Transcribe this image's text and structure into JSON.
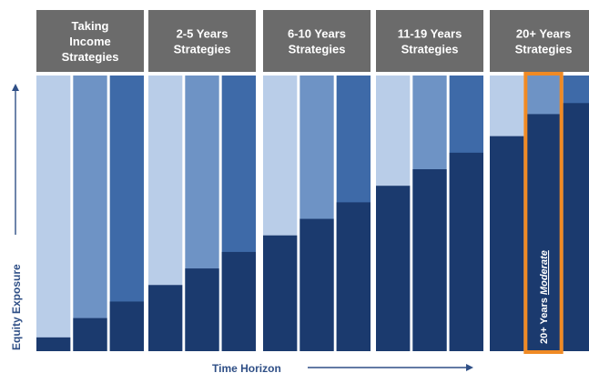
{
  "chart_data": {
    "type": "bar",
    "stacked": true,
    "ylabel": "Equity Exposure",
    "xlabel": "Time Horizon",
    "ylim": [
      0,
      100
    ],
    "groups": [
      {
        "title": [
          "Taking",
          "Income",
          "Strategies"
        ],
        "equity": [
          5,
          12,
          18
        ]
      },
      {
        "title": [
          "2-5 Years",
          "Strategies"
        ],
        "equity": [
          24,
          30,
          36
        ]
      },
      {
        "title": [
          "6-10 Years",
          "Strategies"
        ],
        "equity": [
          42,
          48,
          54
        ]
      },
      {
        "title": [
          "11-19 Years",
          "Strategies"
        ],
        "equity": [
          60,
          66,
          72
        ]
      },
      {
        "title": [
          "20+ Years",
          "Strategies"
        ],
        "equity": [
          78,
          86,
          90
        ]
      }
    ],
    "highlight": {
      "group": 4,
      "bar": 1,
      "label_prefix": "20+ Years",
      "label_emphasis": "Moderate"
    },
    "colors": {
      "header": "#6b6b6b",
      "equity": "#1b3a6e",
      "remainder": [
        "#b9cde8",
        "#6e93c5",
        "#3e6aa8"
      ],
      "highlight_border": "#f08a24",
      "axis_text": "#2f4f86"
    }
  }
}
